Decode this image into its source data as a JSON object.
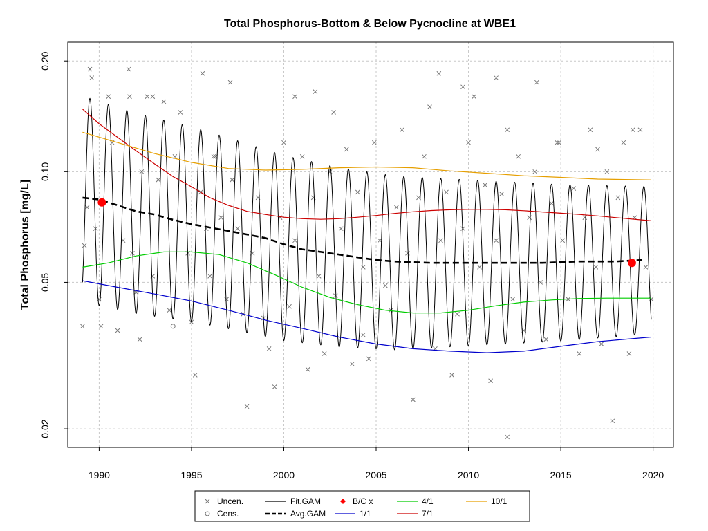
{
  "chart_data": {
    "type": "scatter",
    "title": "Total Phosphorus-Bottom & Below Pycnocline at WBE1",
    "ylabel": "Total Phosphorus [mg/L]",
    "xlabel": "",
    "xlim": [
      1988.3,
      2021.1
    ],
    "ylim": [
      0.0178,
      0.225
    ],
    "y_scale": "log",
    "x_ticks": [
      1990,
      1995,
      2000,
      2005,
      2010,
      2015,
      2020
    ],
    "x_tick_labels": [
      "1990",
      "1995",
      "2000",
      "2005",
      "2010",
      "2015",
      "2020"
    ],
    "y_ticks": [
      0.02,
      0.05,
      0.1,
      0.2
    ],
    "y_tick_labels": [
      "0.02",
      "0.05",
      "0.10",
      "0.20"
    ],
    "grid": true,
    "legend_position": "bottom",
    "legend": [
      {
        "label": "Uncen.",
        "kind": "x-marker",
        "color": "#777777"
      },
      {
        "label": "Cens.",
        "kind": "circle-marker",
        "color": "#777777"
      },
      {
        "label": "Fit.GAM",
        "kind": "line",
        "color": "#000000"
      },
      {
        "label": "Avg.GAM",
        "kind": "dashed-line",
        "color": "#000000"
      },
      {
        "label": "B/C x",
        "kind": "diamond-marker",
        "color": "#ff0000"
      },
      {
        "label": "1/1",
        "kind": "line",
        "color": "#0000cc"
      },
      {
        "label": "4/1",
        "kind": "line",
        "color": "#00cc00"
      },
      {
        "label": "7/1",
        "kind": "line",
        "color": "#cc0000"
      },
      {
        "label": "10/1",
        "kind": "line",
        "color": "#e69f00"
      }
    ],
    "series": [
      {
        "name": "Uncen.",
        "color": "#777777",
        "x": [
          1989.1,
          1989.2,
          1989.35,
          1989.5,
          1989.6,
          1989.8,
          1990.0,
          1990.1,
          1990.15,
          1990.5,
          1990.7,
          1991.0,
          1991.3,
          1991.6,
          1991.65,
          1991.8,
          1992.0,
          1992.2,
          1992.3,
          1992.6,
          1992.9,
          1993.2,
          1993.5,
          1993.8,
          1994.1,
          1994.4,
          1994.8,
          1995.0,
          1995.2,
          1995.5,
          1995.8,
          1996.0,
          1996.3,
          1996.6,
          1996.9,
          1997.2,
          1997.5,
          1997.8,
          1998.0,
          1998.3,
          1998.6,
          1998.9,
          1999.2,
          1999.5,
          1999.8,
          2000.0,
          2000.3,
          2000.6,
          2001.0,
          2001.3,
          2001.6,
          2001.9,
          2002.2,
          2002.5,
          2002.8,
          2003.1,
          2003.4,
          2003.7,
          2004.0,
          2004.3,
          2004.6,
          2004.9,
          2005.2,
          2005.5,
          2005.8,
          2006.1,
          2006.4,
          2006.7,
          2007.0,
          2007.3,
          2007.6,
          2007.9,
          2008.2,
          2008.5,
          2008.8,
          2009.1,
          2009.4,
          2009.7,
          2010.0,
          2010.3,
          2010.6,
          2010.9,
          2011.2,
          2011.5,
          2011.8,
          2012.1,
          2012.4,
          2012.7,
          2013.0,
          2013.3,
          2013.6,
          2013.9,
          2014.2,
          2014.5,
          2014.8,
          2015.1,
          2015.4,
          2015.7,
          2016.0,
          2016.3,
          2016.6,
          2016.9,
          2017.2,
          2017.5,
          2017.8,
          2018.1,
          2018.4,
          2018.7,
          2019.0,
          2019.3,
          2019.6,
          2019.9,
          2001.7,
          2002.7,
          1995.6,
          1997.1,
          2011.5,
          2013.7,
          2009.7,
          2008.4,
          2012.1,
          2014.9,
          2017.0,
          2018.9,
          2000.6,
          1992.9,
          1996.2,
          2004.3
        ],
        "y": [
          0.038,
          0.063,
          0.08,
          0.19,
          0.18,
          0.07,
          0.045,
          0.038,
          0.082,
          0.16,
          0.12,
          0.037,
          0.065,
          0.19,
          0.16,
          0.06,
          0.047,
          0.035,
          0.1,
          0.16,
          0.052,
          0.095,
          0.155,
          0.042,
          0.11,
          0.145,
          0.06,
          0.039,
          0.028,
          0.088,
          0.07,
          0.052,
          0.11,
          0.075,
          0.045,
          0.095,
          0.07,
          0.041,
          0.023,
          0.06,
          0.085,
          0.04,
          0.033,
          0.026,
          0.075,
          0.12,
          0.043,
          0.065,
          0.11,
          0.029,
          0.085,
          0.052,
          0.032,
          0.1,
          0.046,
          0.07,
          0.115,
          0.03,
          0.088,
          0.055,
          0.031,
          0.12,
          0.065,
          0.049,
          0.042,
          0.08,
          0.13,
          0.06,
          0.024,
          0.085,
          0.11,
          0.15,
          0.033,
          0.065,
          0.088,
          0.028,
          0.041,
          0.07,
          0.12,
          0.16,
          0.055,
          0.092,
          0.027,
          0.065,
          0.087,
          0.019,
          0.045,
          0.11,
          0.037,
          0.075,
          0.1,
          0.05,
          0.035,
          0.082,
          0.12,
          0.065,
          0.045,
          0.09,
          0.032,
          0.075,
          0.13,
          0.055,
          0.034,
          0.1,
          0.021,
          0.085,
          0.12,
          0.032,
          0.075,
          0.13,
          0.055,
          0.045,
          0.165,
          0.145,
          0.185,
          0.175,
          0.18,
          0.175,
          0.17,
          0.185,
          0.13,
          0.12,
          0.115,
          0.13,
          0.16,
          0.16,
          0.11,
          0.036
        ]
      },
      {
        "name": "Cens.",
        "color": "#777777",
        "x": [
          1994.0
        ],
        "y": [
          0.038
        ]
      },
      {
        "name": "B/C x",
        "color": "#ff0000",
        "x": [
          1990.15,
          2018.85
        ],
        "y": [
          0.0825,
          0.0565
        ]
      },
      {
        "name": "Fit.GAM",
        "color": "#000000",
        "x_start": 1989.1,
        "x_end": 2019.9,
        "period_years": 1,
        "peak_phase": 0.5,
        "amp_log10_start": 0.28,
        "amp_log10_end": 0.2,
        "center": [
          [
            1989.0,
            0.0845
          ],
          [
            1992.0,
            0.077
          ],
          [
            1995.0,
            0.072
          ],
          [
            1997.0,
            0.068
          ],
          [
            2000.0,
            0.062
          ],
          [
            2003.0,
            0.0585
          ],
          [
            2006.0,
            0.0565
          ],
          [
            2010.0,
            0.0565
          ],
          [
            2015.0,
            0.0565
          ],
          [
            2019.9,
            0.0575
          ]
        ]
      },
      {
        "name": "Avg.GAM",
        "color": "#000000",
        "dashed": true,
        "x": [
          1989.1,
          1990.0,
          1991.0,
          1992.0,
          1993.0,
          1994.0,
          1995.0,
          1996.0,
          1997.0,
          1998.0,
          1999.0,
          2000.0,
          2001.0,
          2002.0,
          2003.0,
          2004.0,
          2005.0,
          2006.0,
          2008.0,
          2010.0,
          2012.0,
          2014.0,
          2016.0,
          2018.0,
          2019.4
        ],
        "y": [
          0.085,
          0.084,
          0.081,
          0.078,
          0.0765,
          0.074,
          0.072,
          0.0705,
          0.069,
          0.0675,
          0.066,
          0.0635,
          0.0615,
          0.0605,
          0.0595,
          0.0585,
          0.0575,
          0.057,
          0.0565,
          0.0565,
          0.0565,
          0.0565,
          0.057,
          0.057,
          0.0575
        ]
      },
      {
        "name": "1/1",
        "color": "#0000cc",
        "x": [
          1989.1,
          1991.0,
          1993.0,
          1995.0,
          1997.0,
          1999.0,
          2001.0,
          2003.0,
          2005.0,
          2007.0,
          2009.0,
          2011.0,
          2013.0,
          2015.0,
          2017.0,
          2019.9
        ],
        "y": [
          0.0505,
          0.0485,
          0.0465,
          0.0445,
          0.042,
          0.0395,
          0.0375,
          0.0355,
          0.034,
          0.033,
          0.0325,
          0.0322,
          0.0325,
          0.0335,
          0.0345,
          0.0355
        ]
      },
      {
        "name": "4/1",
        "color": "#00cc00",
        "x": [
          1989.1,
          1990.5,
          1992.0,
          1993.5,
          1995.0,
          1996.5,
          1998.0,
          1999.5,
          2001.0,
          2002.5,
          2004.0,
          2005.5,
          2007.0,
          2008.5,
          2010.0,
          2011.5,
          2013.0,
          2014.5,
          2016.0,
          2017.5,
          2019.9
        ],
        "y": [
          0.055,
          0.0565,
          0.059,
          0.0605,
          0.0605,
          0.0595,
          0.0565,
          0.0525,
          0.0485,
          0.0455,
          0.0435,
          0.042,
          0.0413,
          0.0413,
          0.042,
          0.0432,
          0.0442,
          0.0448,
          0.0452,
          0.0453,
          0.0453
        ]
      },
      {
        "name": "7/1",
        "color": "#cc0000",
        "x": [
          1989.1,
          1990.0,
          1991.0,
          1992.0,
          1993.0,
          1994.0,
          1995.0,
          1996.0,
          1997.0,
          1998.0,
          1999.0,
          2000.0,
          2001.0,
          2002.0,
          2003.0,
          2004.0,
          2005.0,
          2006.0,
          2007.0,
          2008.0,
          2009.0,
          2010.0,
          2011.0,
          2012.0,
          2013.0,
          2014.0,
          2015.0,
          2016.0,
          2017.0,
          2018.0,
          2019.9
        ],
        "y": [
          0.148,
          0.135,
          0.124,
          0.114,
          0.105,
          0.097,
          0.091,
          0.085,
          0.081,
          0.078,
          0.0765,
          0.0752,
          0.0745,
          0.0742,
          0.0745,
          0.0752,
          0.076,
          0.077,
          0.0778,
          0.0784,
          0.0788,
          0.079,
          0.079,
          0.0788,
          0.0783,
          0.0777,
          0.0771,
          0.0765,
          0.0758,
          0.075,
          0.0735
        ]
      },
      {
        "name": "10/1",
        "color": "#e69f00",
        "x": [
          1989.1,
          1991.0,
          1993.0,
          1995.0,
          1997.0,
          1999.0,
          2001.0,
          2003.0,
          2005.0,
          2007.0,
          2009.0,
          2011.0,
          2013.0,
          2015.0,
          2017.0,
          2019.9
        ],
        "y": [
          0.128,
          0.12,
          0.112,
          0.106,
          0.102,
          0.101,
          0.1015,
          0.1025,
          0.103,
          0.1025,
          0.1005,
          0.099,
          0.0975,
          0.0965,
          0.0955,
          0.095
        ]
      }
    ]
  }
}
